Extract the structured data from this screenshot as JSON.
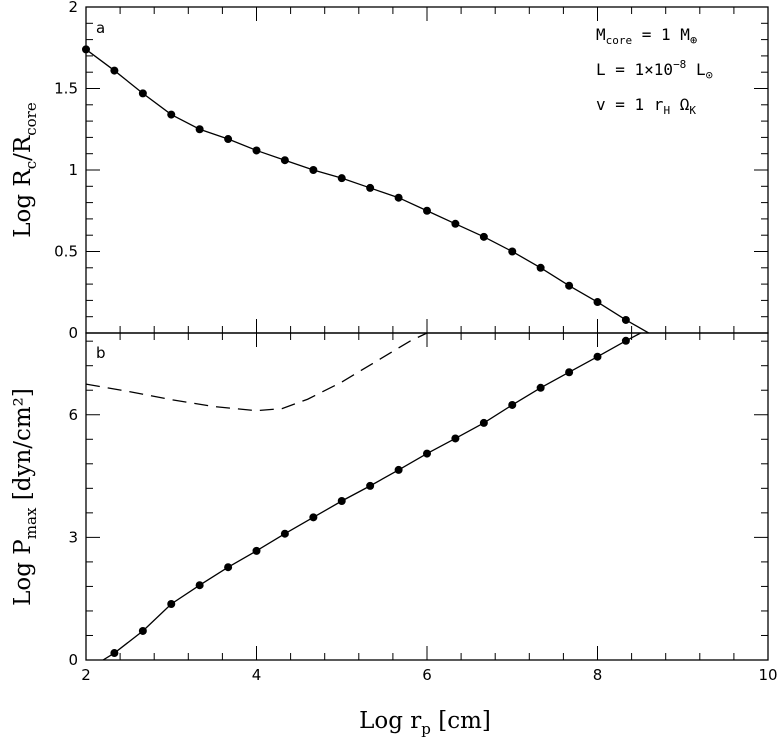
{
  "chart_data": [
    {
      "type": "line",
      "panel_label": "a",
      "xlabel": "Log r_p [cm]",
      "ylabel": "Log R_c/R_core",
      "xlim": [
        2,
        10
      ],
      "ylim": [
        0,
        2
      ],
      "x_ticks": [
        "2",
        "4",
        "6",
        "8",
        "10"
      ],
      "y_ticks": [
        "0",
        "0.5",
        "1",
        "1.5",
        "2"
      ],
      "annotations": [
        "M_core = 1 M_⊕",
        "L = 1×10^-8 L_⊙",
        "v = 1 r_H Ω_K"
      ],
      "series": [
        {
          "style": "solid line with filled circles",
          "x": [
            2.0,
            2.333,
            2.667,
            3.0,
            3.333,
            3.667,
            4.0,
            4.333,
            4.667,
            5.0,
            5.333,
            5.667,
            6.0,
            6.333,
            6.667,
            7.0,
            7.333,
            7.667,
            8.0,
            8.333,
            8.6
          ],
          "y": [
            1.74,
            1.61,
            1.47,
            1.34,
            1.25,
            1.19,
            1.12,
            1.06,
            1.0,
            0.95,
            0.89,
            0.83,
            0.75,
            0.67,
            0.59,
            0.5,
            0.4,
            0.29,
            0.19,
            0.08,
            0.0
          ],
          "markers_count": 20
        }
      ],
      "grid": false
    },
    {
      "type": "line",
      "panel_label": "b",
      "xlabel": "Log r_p [cm]",
      "ylabel": "Log P_max [dyn/cm²]",
      "xlim": [
        2,
        10
      ],
      "ylim": [
        0,
        8
      ],
      "x_ticks": [
        "2",
        "4",
        "6",
        "8",
        "10"
      ],
      "y_ticks": [
        "0",
        "3",
        "6"
      ],
      "series": [
        {
          "style": "solid line with filled circles",
          "x": [
            2.2,
            2.333,
            2.667,
            3.0,
            3.333,
            3.667,
            4.0,
            4.333,
            4.667,
            5.0,
            5.333,
            5.667,
            6.0,
            6.333,
            6.667,
            7.0,
            7.333,
            7.667,
            8.0,
            8.333,
            8.6
          ],
          "y": [
            0.0,
            0.17,
            0.71,
            1.37,
            1.83,
            2.27,
            2.67,
            3.09,
            3.49,
            3.89,
            4.26,
            4.65,
            5.05,
            5.42,
            5.8,
            6.24,
            6.66,
            7.04,
            7.42,
            7.81,
            8.1
          ],
          "first_marker_index": 1,
          "last_marker_index": 19
        },
        {
          "style": "dashed line",
          "x": [
            2.0,
            2.5,
            3.0,
            3.5,
            4.0,
            4.3,
            4.6,
            5.0,
            5.4,
            5.8,
            6.0
          ],
          "y": [
            6.75,
            6.57,
            6.37,
            6.2,
            6.1,
            6.15,
            6.38,
            6.8,
            7.3,
            7.8,
            8.0
          ]
        }
      ],
      "grid": false
    }
  ]
}
